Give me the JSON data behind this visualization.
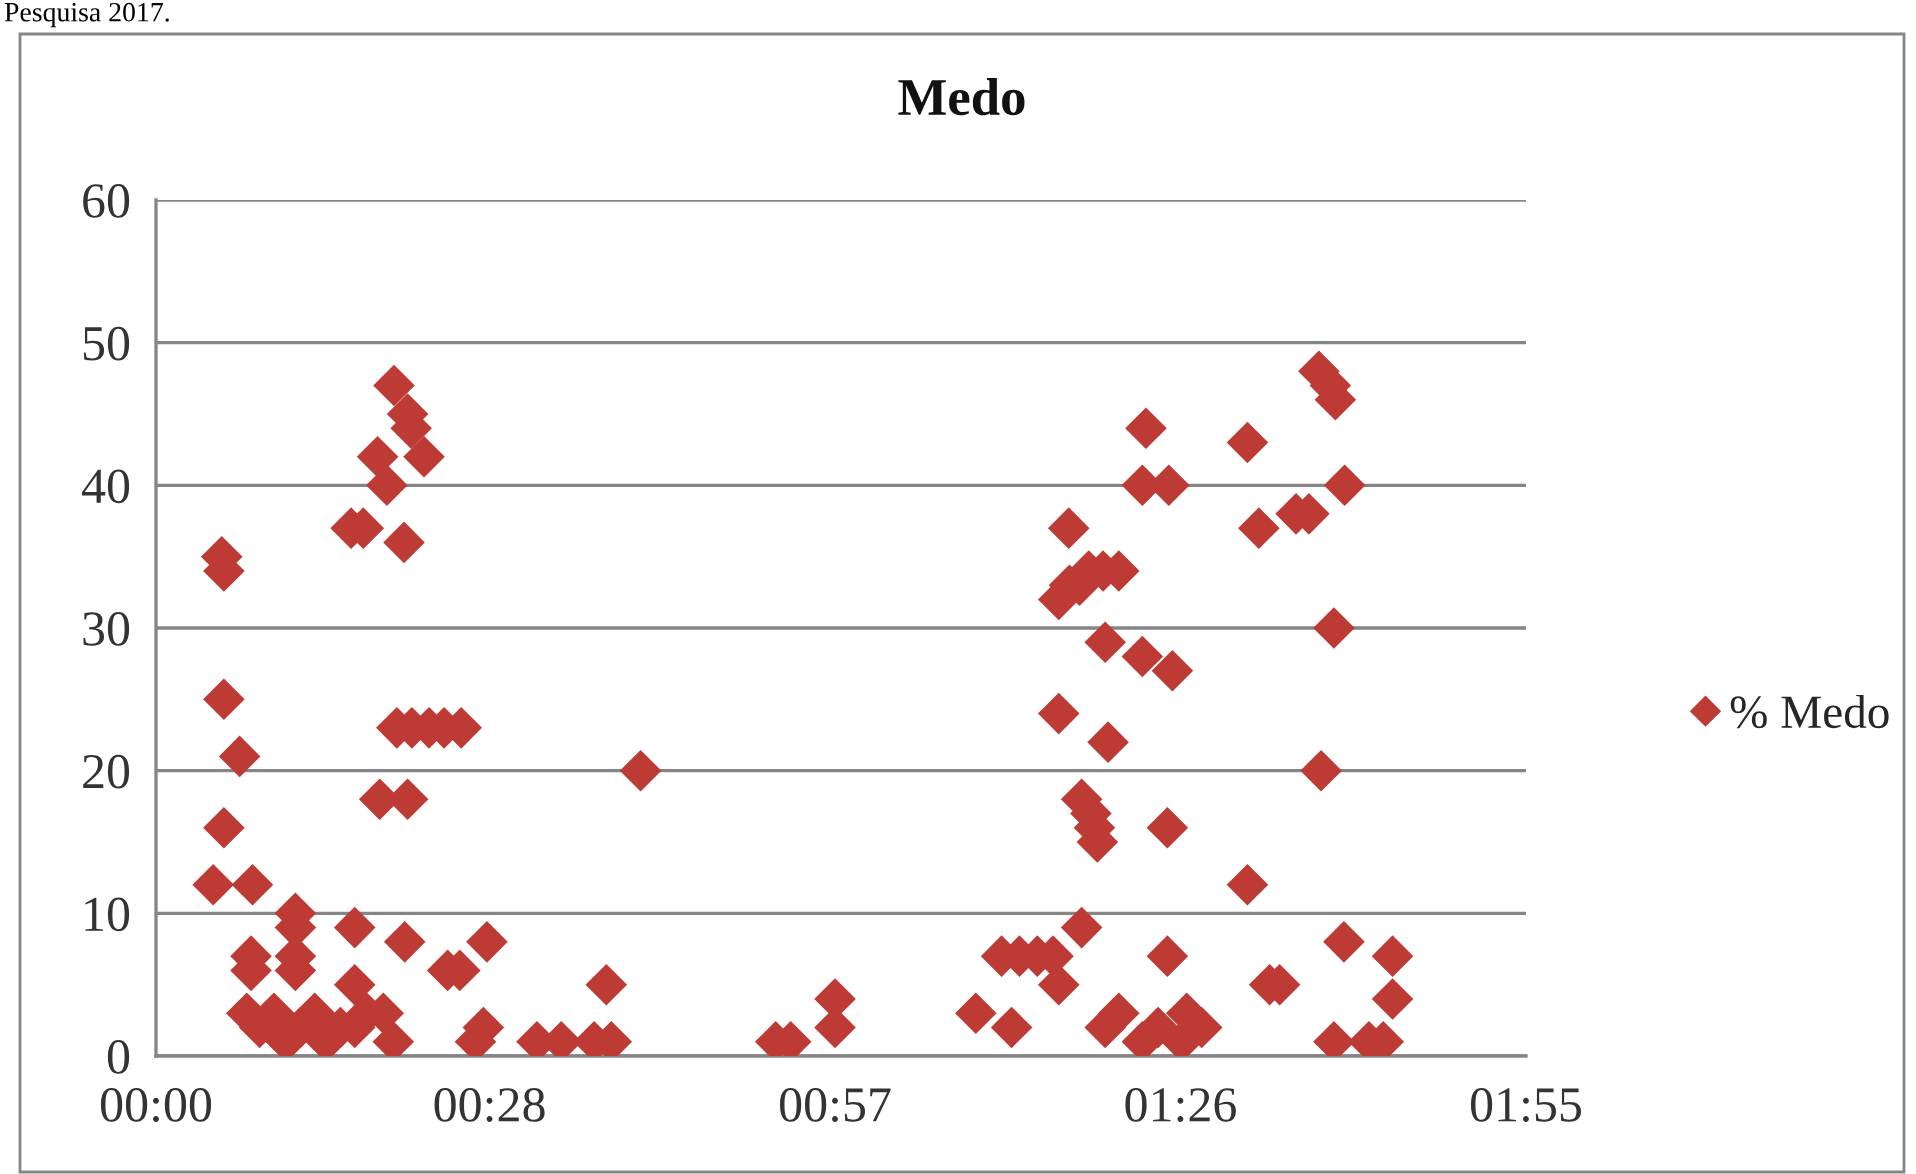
{
  "chart_data": {
    "type": "scatter",
    "title": "Medo",
    "annotations": [
      "Pesquisa 2017."
    ],
    "x": [
      0.092,
      0.095,
      0.095,
      0.117,
      0.095,
      0.08,
      0.135,
      0.195,
      0.195,
      0.278,
      0.348,
      0.133,
      0.133,
      0.195,
      0.195,
      0.278,
      0.318,
      0.332,
      0.127,
      0.145,
      0.165,
      0.182,
      0.202,
      0.222,
      0.238,
      0.258,
      0.278,
      0.295,
      0.333,
      0.352,
      0.357,
      0.31,
      0.375,
      0.323,
      0.273,
      0.29,
      0.347,
      0.337,
      0.358,
      0.382,
      0.403,
      0.427,
      0.678,
      0.313,
      0.352,
      0.408,
      0.425,
      0.463,
      0.447,
      0.458,
      0.533,
      0.567,
      0.613,
      0.637,
      0.63,
      0.867,
      0.888,
      0.95,
      0.95,
      1.147,
      1.197,
      1.183,
      1.208,
      1.233,
      1.255,
      1.263,
      1.295,
      1.295,
      1.308,
      1.313,
      1.317,
      1.415,
      1.415,
      1.263,
      1.332,
      1.38,
      1.417,
      1.277,
      1.263,
      1.278,
      1.292,
      1.305,
      1.325,
      1.347,
      1.328,
      1.38,
      1.422,
      1.385,
      1.328,
      1.347,
      1.38,
      1.402,
      1.442,
      1.435,
      1.463,
      1.627,
      1.643,
      1.65,
      1.527,
      1.663,
      1.543,
      1.595,
      1.613,
      1.648,
      1.63,
      1.527,
      1.662,
      1.73,
      1.558,
      1.572,
      1.73,
      1.648,
      1.697,
      1.717
    ],
    "series": [
      {
        "name": "% Medo",
        "color": "#be3a34",
        "values": [
          35,
          34,
          25,
          21,
          16,
          12,
          12,
          10,
          9,
          9,
          8,
          7,
          6,
          7,
          6,
          5,
          3,
          1,
          3,
          2,
          3,
          1,
          2,
          3,
          1,
          2,
          2,
          3,
          47,
          45,
          44,
          42,
          42,
          40,
          37,
          37,
          36,
          23,
          23,
          23,
          23,
          23,
          20,
          18,
          18,
          6,
          6,
          8,
          1,
          2,
          1,
          1,
          1,
          1,
          5,
          1,
          1,
          4,
          2,
          3,
          2,
          7,
          7,
          7,
          7,
          5,
          9,
          18,
          17,
          16,
          15,
          16,
          7,
          24,
          22,
          40,
          40,
          37,
          32,
          33,
          33,
          34,
          34,
          34,
          29,
          28,
          27,
          44,
          2,
          3,
          1,
          2,
          3,
          1,
          2,
          48,
          47,
          46,
          43,
          40,
          37,
          38,
          38,
          30,
          20,
          12,
          8,
          7,
          5,
          5,
          4,
          1,
          1,
          1
        ]
      }
    ],
    "xlim": [
      0,
      1.9167
    ],
    "xticks": [
      {
        "value": 0,
        "label": "00:00"
      },
      {
        "value": 0.4667,
        "label": "00:28"
      },
      {
        "value": 0.95,
        "label": "00:57"
      },
      {
        "value": 1.4333,
        "label": "01:26"
      },
      {
        "value": 1.9167,
        "label": "01:55"
      }
    ],
    "ylim": [
      0,
      60
    ],
    "yticks": [
      0,
      10,
      20,
      30,
      40,
      50,
      60
    ],
    "grid": "y",
    "legend": "right",
    "marker": "diamond"
  }
}
